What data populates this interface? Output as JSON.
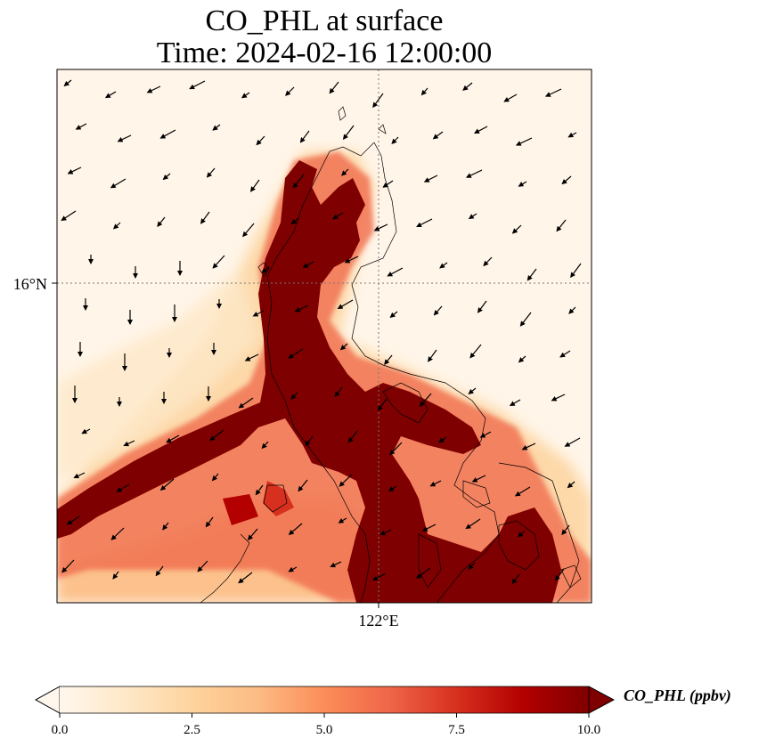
{
  "figure": {
    "title_line1": "CO_PHL at surface",
    "title_line2": "Time: 2024-02-16 12:00:00"
  },
  "map": {
    "lat_tick_label": "16°N",
    "lon_tick_label": "122°E",
    "gridline_style": "dotted",
    "coastlines": true
  },
  "colorbar": {
    "label": "CO_PHL (ppbv)",
    "ticks": [
      0.0,
      2.5,
      5.0,
      7.5,
      10.0
    ],
    "tick_labels": [
      "0.0",
      "2.5",
      "5.0",
      "7.5",
      "10.0"
    ],
    "range": [
      0,
      10
    ],
    "extend": "both",
    "colormap": "OrRd",
    "colors": [
      "#fff7ec",
      "#fee8c8",
      "#fdd49e",
      "#fdbb84",
      "#fc8d59",
      "#ef6548",
      "#d7301f",
      "#b30000",
      "#7f0000"
    ]
  }
}
